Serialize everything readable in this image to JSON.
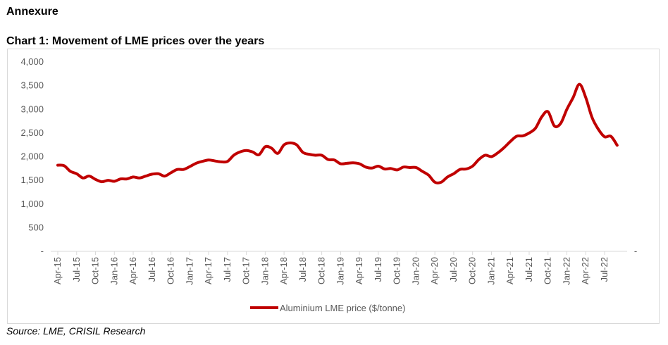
{
  "heading": "Annexure",
  "source": "Source: LME, CRISIL Research",
  "chart_data": {
    "type": "line",
    "title": "Chart 1: Movement of LME prices over the years",
    "xlabel": "",
    "ylabel": "",
    "ylim": [
      0,
      4000
    ],
    "yticks": [
      0,
      500,
      1000,
      1500,
      2000,
      2500,
      3000,
      3500,
      4000
    ],
    "ytick_labels": [
      "-",
      "500",
      "1,000",
      "1,500",
      "2,000",
      "2,500",
      "3,000",
      "3,500",
      "4,000"
    ],
    "xtick_labels": [
      "Apr-15",
      "Jul-15",
      "Oct-15",
      "Jan-16",
      "Apr-16",
      "Jul-16",
      "Oct-16",
      "Jan-17",
      "Apr-17",
      "Jul-17",
      "Oct-17",
      "Jan-18",
      "Apr-18",
      "Jul-18",
      "Oct-18",
      "Jan-19",
      "Apr-19",
      "Jul-19",
      "Oct-19",
      "Jan-20",
      "Apr-20",
      "Jul-20",
      "Oct-20",
      "Jan-21",
      "Apr-21",
      "Jul-21",
      "Oct-21",
      "Jan-22",
      "Apr-22",
      "Jul-22"
    ],
    "x_start": "Apr-15",
    "x_end": "Sep-22",
    "frequency": "monthly",
    "grid": false,
    "legend_position": "bottom",
    "series": [
      {
        "name": "Aluminium LME price ($/tonne)",
        "color": "#C00000",
        "values": [
          1820,
          1810,
          1690,
          1640,
          1550,
          1590,
          1520,
          1470,
          1500,
          1480,
          1530,
          1530,
          1570,
          1550,
          1590,
          1630,
          1640,
          1590,
          1660,
          1730,
          1730,
          1790,
          1860,
          1900,
          1930,
          1910,
          1890,
          1900,
          2030,
          2100,
          2130,
          2100,
          2040,
          2210,
          2180,
          2070,
          2250,
          2290,
          2250,
          2090,
          2050,
          2030,
          2030,
          1940,
          1930,
          1850,
          1860,
          1870,
          1850,
          1780,
          1760,
          1800,
          1740,
          1750,
          1720,
          1780,
          1770,
          1770,
          1690,
          1610,
          1460,
          1460,
          1570,
          1640,
          1730,
          1740,
          1800,
          1940,
          2030,
          2000,
          2080,
          2190,
          2320,
          2430,
          2440,
          2500,
          2600,
          2840,
          2950,
          2650,
          2700,
          3000,
          3250,
          3530,
          3250,
          2830,
          2580,
          2420,
          2430,
          2240
        ]
      }
    ]
  }
}
